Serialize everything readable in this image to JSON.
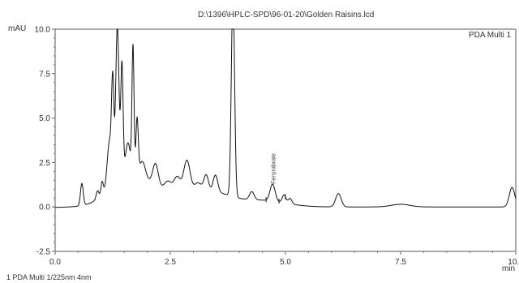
{
  "chart_data": {
    "type": "line",
    "title": "D:\\1396\\HPLC-SPD\\96-01-20\\Golden Raisins.lcd",
    "ylabel": "mAU",
    "xlabel": "min",
    "xlim": [
      0.0,
      10.0
    ],
    "ylim": [
      -2.5,
      10.0
    ],
    "x_ticks": [
      "0.0",
      "2.5",
      "5.0",
      "7.5",
      "10.0"
    ],
    "y_ticks": [
      "-2.5",
      "0.0",
      "2.5",
      "5.0",
      "7.5",
      "10.0"
    ],
    "legend": "PDA Multi 1",
    "footnote": "1  PDA Multi 1/225nm 4nm",
    "annotations": [
      {
        "x": 4.78,
        "y": 1.2,
        "text": "Fenyrabrate"
      }
    ],
    "baseline": 0.0,
    "peaks": [
      {
        "x": 0.58,
        "height": 1.25,
        "width": 0.03
      },
      {
        "x": 0.92,
        "height": 0.45,
        "width": 0.03
      },
      {
        "x": 1.02,
        "height": 0.75,
        "width": 0.025
      },
      {
        "x": 1.18,
        "height": 2.6,
        "width": 0.05
      },
      {
        "x": 1.25,
        "height": 5.2,
        "width": 0.025
      },
      {
        "x": 1.35,
        "height": 8.6,
        "width": 0.035
      },
      {
        "x": 1.45,
        "height": 6.2,
        "width": 0.025
      },
      {
        "x": 1.58,
        "height": 1.6,
        "width": 0.05
      },
      {
        "x": 1.69,
        "height": 7.0,
        "width": 0.022
      },
      {
        "x": 1.78,
        "height": 3.0,
        "width": 0.025
      },
      {
        "x": 1.9,
        "height": 0.8,
        "width": 0.06
      },
      {
        "x": 2.18,
        "height": 1.25,
        "width": 0.06
      },
      {
        "x": 2.45,
        "height": 0.55,
        "width": 0.08
      },
      {
        "x": 2.65,
        "height": 0.85,
        "width": 0.07
      },
      {
        "x": 2.86,
        "height": 1.8,
        "width": 0.07
      },
      {
        "x": 3.1,
        "height": 0.5,
        "width": 0.08
      },
      {
        "x": 3.28,
        "height": 0.9,
        "width": 0.05
      },
      {
        "x": 3.48,
        "height": 0.95,
        "width": 0.05
      },
      {
        "x": 3.86,
        "height": 11.5,
        "width": 0.035
      },
      {
        "x": 4.27,
        "height": 0.45,
        "width": 0.05
      },
      {
        "x": 4.72,
        "height": 0.95,
        "width": 0.055
      },
      {
        "x": 4.97,
        "height": 0.45,
        "width": 0.04
      },
      {
        "x": 5.1,
        "height": 0.3,
        "width": 0.04
      },
      {
        "x": 6.15,
        "height": 0.75,
        "width": 0.06
      },
      {
        "x": 7.5,
        "height": 0.15,
        "width": 0.2
      },
      {
        "x": 9.92,
        "height": 1.1,
        "width": 0.06
      }
    ],
    "background_bumps": [
      {
        "x": 1.6,
        "height": 1.8,
        "width": 0.4
      },
      {
        "x": 2.7,
        "height": 0.75,
        "width": 0.7
      },
      {
        "x": 3.5,
        "height": 0.4,
        "width": 0.35
      },
      {
        "x": 4.5,
        "height": 0.35,
        "width": 0.5
      }
    ]
  }
}
